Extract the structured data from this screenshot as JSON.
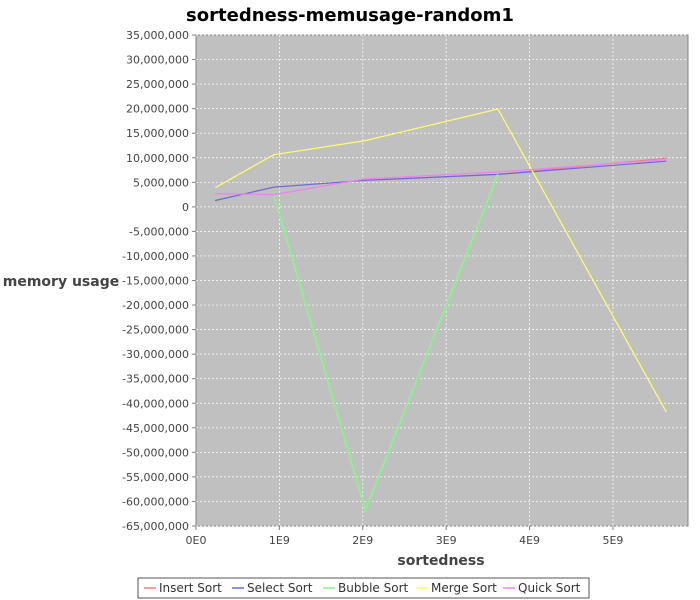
{
  "chart_data": {
    "type": "line",
    "title": "sortedness-memusage-random1",
    "xlabel": "sortedness",
    "ylabel": "memory usage",
    "xlim": [
      0,
      5900000000
    ],
    "ylim": [
      -65000000,
      35000000
    ],
    "x_ticks": [
      {
        "value": 0,
        "label": "0E0"
      },
      {
        "value": 1000000000,
        "label": "1E9"
      },
      {
        "value": 2000000000,
        "label": "2E9"
      },
      {
        "value": 3000000000,
        "label": "3E9"
      },
      {
        "value": 4000000000,
        "label": "4E9"
      },
      {
        "value": 5000000000,
        "label": "5E9"
      }
    ],
    "y_ticks": [
      {
        "value": 35000000,
        "label": "35,000,000"
      },
      {
        "value": 30000000,
        "label": "30,000,000"
      },
      {
        "value": 25000000,
        "label": "25,000,000"
      },
      {
        "value": 20000000,
        "label": "20,000,000"
      },
      {
        "value": 15000000,
        "label": "15,000,000"
      },
      {
        "value": 10000000,
        "label": "10,000,000"
      },
      {
        "value": 5000000,
        "label": "5,000,000"
      },
      {
        "value": 0,
        "label": "0"
      },
      {
        "value": -5000000,
        "label": "-5,000,000"
      },
      {
        "value": -10000000,
        "label": "-10,000,000"
      },
      {
        "value": -15000000,
        "label": "-15,000,000"
      },
      {
        "value": -20000000,
        "label": "-20,000,000"
      },
      {
        "value": -25000000,
        "label": "-25,000,000"
      },
      {
        "value": -30000000,
        "label": "-30,000,000"
      },
      {
        "value": -35000000,
        "label": "-35,000,000"
      },
      {
        "value": -40000000,
        "label": "-40,000,000"
      },
      {
        "value": -45000000,
        "label": "-45,000,000"
      },
      {
        "value": -50000000,
        "label": "-50,000,000"
      },
      {
        "value": -55000000,
        "label": "-55,000,000"
      },
      {
        "value": -60000000,
        "label": "-60,000,000"
      },
      {
        "value": -65000000,
        "label": "-65,000,000"
      }
    ],
    "grid": true,
    "legend_position": "bottom",
    "background": "#c0c0c0",
    "series": [
      {
        "name": "Insert Sort",
        "color": "#f08080",
        "points": [
          [
            230000000,
            1300000
          ],
          [
            930000000,
            4000000
          ],
          [
            2030000000,
            5400000
          ],
          [
            3620000000,
            6600000
          ],
          [
            5640000000,
            9900000
          ]
        ]
      },
      {
        "name": "Select Sort",
        "color": "#6a6ae0",
        "points": [
          [
            230000000,
            1300000
          ],
          [
            930000000,
            4000000
          ],
          [
            2030000000,
            5400000
          ],
          [
            3620000000,
            6600000
          ],
          [
            5640000000,
            9300000
          ]
        ]
      },
      {
        "name": "Bubble Sort",
        "color": "#90ee90",
        "points": [
          [
            930000000,
            2500000
          ],
          [
            2030000000,
            -61800000
          ],
          [
            3620000000,
            6600000
          ]
        ]
      },
      {
        "name": "Merge Sort",
        "color": "#ffff66",
        "points": [
          [
            230000000,
            3900000
          ],
          [
            930000000,
            10600000
          ],
          [
            2030000000,
            13500000
          ],
          [
            3620000000,
            19900000
          ],
          [
            5640000000,
            -41800000
          ]
        ]
      },
      {
        "name": "Quick Sort",
        "color": "#ee82ee",
        "points": [
          [
            230000000,
            2700000
          ],
          [
            930000000,
            2500000
          ],
          [
            2030000000,
            5700000
          ],
          [
            3620000000,
            7100000
          ],
          [
            5640000000,
            9600000
          ]
        ]
      }
    ]
  }
}
